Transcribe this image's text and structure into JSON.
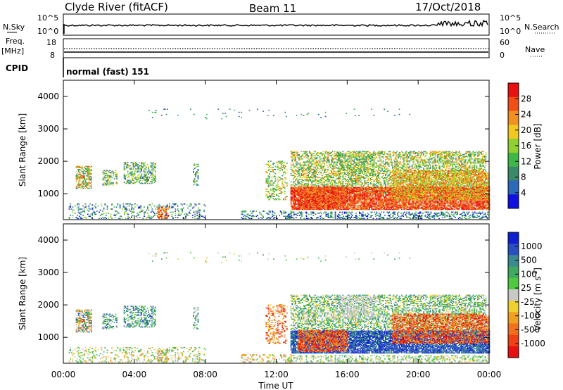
{
  "header": {
    "station": "Clyde River (fitACF)",
    "beam": "Beam 11",
    "date": "17/Oct/2018"
  },
  "sky_panel": {
    "left_label": "N.Sky",
    "right_label": "N.Search",
    "left_ticks": [
      "10^5",
      "10^0"
    ],
    "right_ticks": [
      "10^5",
      "10^0"
    ]
  },
  "freq_panel": {
    "left_label_1": "Freq.",
    "left_label_2": "[MHz]",
    "right_label": "Nave",
    "left_ticks": [
      "18",
      "8"
    ],
    "right_ticks": [
      "60",
      "0"
    ]
  },
  "cpid": {
    "label": "CPID",
    "mode": "normal (fast) 151"
  },
  "chart_data": [
    {
      "type": "heatmap",
      "variable": "Power",
      "ylabel": "Slant Range [km]",
      "yticks": [
        "1000",
        "2000",
        "3000",
        "4000"
      ],
      "ylim": [
        200,
        4500
      ],
      "colorbar": {
        "label": "Power [dB]",
        "ticks": [
          "4",
          "8",
          "12",
          "16",
          "20",
          "24",
          "28"
        ],
        "colors": [
          "#1010e0",
          "#2a6ab8",
          "#3a8a6a",
          "#40b848",
          "#90d030",
          "#f0c820",
          "#f09020",
          "#f05018",
          "#e81010"
        ]
      }
    },
    {
      "type": "heatmap",
      "variable": "Velocity",
      "ylabel": "Slant Range [km]",
      "yticks": [
        "1000",
        "2000",
        "3000",
        "4000"
      ],
      "ylim": [
        200,
        4500
      ],
      "colorbar": {
        "label": "Velocity [m s^-1]",
        "ticks": [
          "1000",
          "500",
          "100",
          "25",
          "-25",
          "-100",
          "-500",
          "-1000"
        ],
        "colors": [
          "#1020d0",
          "#2a50c0",
          "#3a8a90",
          "#40a860",
          "#50c840",
          "#c8c8c8",
          "#f0d030",
          "#f0a020",
          "#f07020",
          "#f04018",
          "#e81010"
        ]
      }
    }
  ],
  "xaxis": {
    "label": "Time UT",
    "ticks": [
      "00:00",
      "04:00",
      "08:00",
      "12:00",
      "16:00",
      "20:00",
      "00:00"
    ]
  }
}
